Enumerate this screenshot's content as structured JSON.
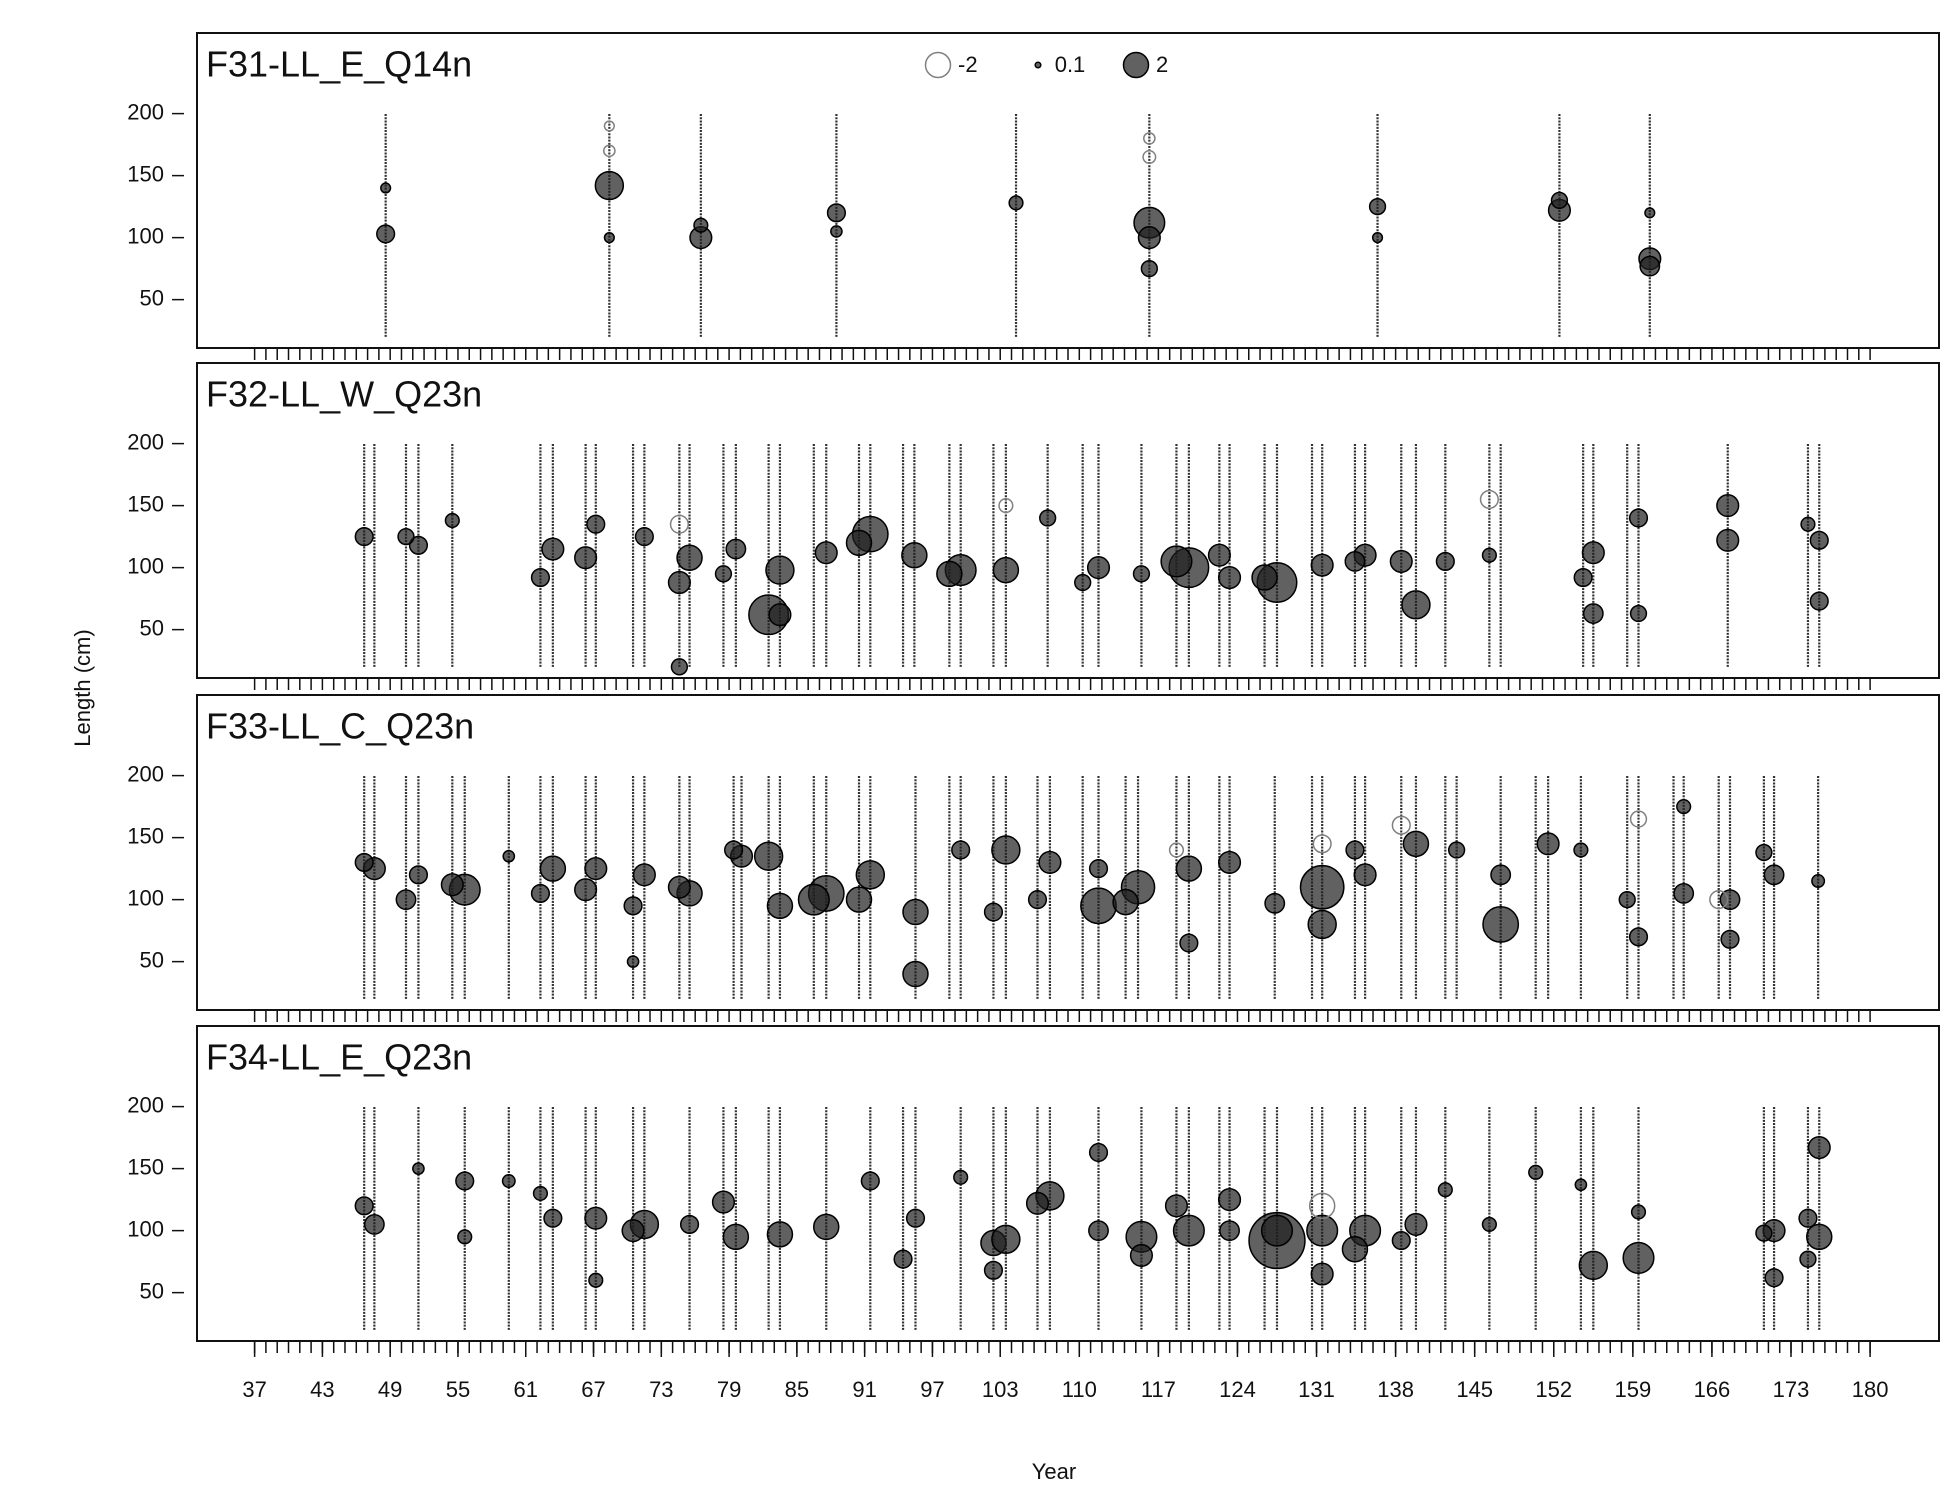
{
  "chart_data": [
    {
      "type": "bubble",
      "title": "F31-LL_E_Q14n",
      "xlim": [
        31.9,
        186.1
      ],
      "ylim": [
        11,
        265
      ],
      "yticks": [
        50,
        100,
        150,
        200
      ],
      "xminor_step": 1,
      "xticks": [
        37,
        43,
        49,
        55,
        61,
        67,
        73,
        79,
        85,
        91,
        97,
        103,
        110,
        117,
        124,
        131,
        138,
        145,
        152,
        159,
        166,
        173,
        180
      ],
      "color": "#1e1e1e",
      "negative_color": "#808080",
      "legend_sizes": [
        -2,
        0.1,
        2
      ],
      "length_range": [
        20,
        200
      ],
      "columns": [
        48.6,
        68.4,
        76.5,
        88.5,
        104.4,
        116.2,
        136.4,
        152.5,
        160.5
      ],
      "x": [
        48.6,
        48.6,
        68.4,
        68.4,
        76.5,
        76.5,
        88.5,
        88.5,
        104.4,
        116.2,
        116.2,
        116.2,
        116.2,
        116.2,
        136.4,
        136.4,
        152.5,
        152.5,
        160.5,
        160.5,
        160.5,
        68.4,
        68.4
      ],
      "y": [
        103,
        140,
        142,
        100,
        100,
        110,
        120,
        105,
        128,
        112,
        100,
        75,
        165,
        180,
        125,
        100,
        122,
        130,
        83,
        77,
        120,
        170,
        190
      ],
      "size": [
        1,
        0.3,
        2.5,
        0.3,
        1.5,
        0.6,
        1,
        0.4,
        0.6,
        3,
        1.5,
        0.8,
        -0.5,
        -0.4,
        0.8,
        0.3,
        1.5,
        0.8,
        1.5,
        1.2,
        0.3,
        -0.4,
        -0.3
      ]
    },
    {
      "type": "bubble",
      "title": "F32-LL_W_Q23n",
      "ylabel": "Length (cm)",
      "xlim": [
        31.9,
        186.1
      ],
      "ylim": [
        11,
        265
      ],
      "yticks": [
        50,
        100,
        150,
        200
      ],
      "xminor_step": 1,
      "xticks": [
        37,
        43,
        49,
        55,
        61,
        67,
        73,
        79,
        85,
        91,
        97,
        103,
        110,
        117,
        124,
        131,
        138,
        145,
        152,
        159,
        166,
        173,
        180
      ],
      "color": "#1e1e1e",
      "negative_color": "#808080",
      "length_range": [
        20,
        200
      ],
      "columns": [
        46.7,
        47.6,
        50.4,
        51.5,
        54.5,
        62.3,
        63.4,
        66.3,
        67.2,
        70.5,
        71.5,
        74.6,
        75.5,
        78.5,
        79.6,
        82.5,
        83.5,
        86.5,
        87.6,
        90.5,
        91.5,
        94.4,
        95.4,
        98.5,
        99.5,
        102.4,
        103.5,
        107.2,
        110.3,
        111.7,
        115.5,
        118.6,
        119.7,
        122.4,
        123.3,
        126.4,
        127.5,
        130.6,
        131.5,
        134.4,
        135.3,
        138.5,
        139.8,
        142.4,
        146.3,
        147.3,
        154.6,
        155.5,
        158.5,
        159.5,
        167.4,
        174.5,
        175.5
      ],
      "x": [
        46.7,
        51.5,
        50.4,
        54.5,
        62.3,
        63.4,
        66.3,
        67.2,
        71.5,
        74.6,
        75.5,
        74.6,
        74.6,
        79.6,
        78.5,
        82.5,
        83.5,
        83.5,
        87.6,
        91.5,
        90.5,
        95.4,
        99.5,
        98.5,
        103.5,
        103.5,
        107.2,
        111.7,
        110.3,
        115.5,
        119.7,
        118.6,
        122.4,
        123.3,
        127.5,
        126.4,
        131.5,
        135.3,
        134.4,
        139.8,
        138.5,
        142.4,
        146.3,
        146.3,
        154.6,
        155.5,
        155.5,
        159.5,
        159.5,
        167.4,
        167.4,
        175.5,
        175.5,
        174.5
      ],
      "y": [
        125,
        118,
        125,
        138,
        92,
        115,
        108,
        135,
        125,
        88,
        108,
        20,
        135,
        115,
        95,
        62,
        98,
        62,
        112,
        127,
        120,
        110,
        98,
        95,
        98,
        150,
        140,
        100,
        88,
        95,
        100,
        105,
        110,
        92,
        88,
        92,
        102,
        110,
        105,
        70,
        105,
        105,
        155,
        110,
        92,
        112,
        63,
        140,
        63,
        150,
        122,
        122,
        73,
        135
      ],
      "size": [
        1,
        1,
        0.8,
        0.6,
        1,
        1.5,
        1.5,
        1,
        1,
        1.5,
        2,
        0.8,
        -1,
        1.2,
        0.8,
        5,
        2.5,
        1.5,
        1.5,
        4,
        2,
        2,
        3,
        2,
        2,
        -0.6,
        0.8,
        1.5,
        0.8,
        0.8,
        5,
        3,
        1.5,
        1.5,
        5,
        2,
        1.5,
        1.5,
        1.2,
        2.5,
        1.5,
        1,
        -1,
        0.6,
        1,
        1.5,
        1.2,
        1,
        0.8,
        1.5,
        1.5,
        1,
        1,
        0.6
      ]
    },
    {
      "type": "bubble",
      "title": "F33-LL_C_Q23n",
      "xlim": [
        31.9,
        186.1
      ],
      "ylim": [
        11,
        265
      ],
      "yticks": [
        50,
        100,
        150,
        200
      ],
      "xminor_step": 1,
      "xticks": [
        37,
        43,
        49,
        55,
        61,
        67,
        73,
        79,
        85,
        91,
        97,
        103,
        110,
        117,
        124,
        131,
        138,
        145,
        152,
        159,
        166,
        173,
        180
      ],
      "color": "#1e1e1e",
      "negative_color": "#808080",
      "length_range": [
        20,
        200
      ],
      "columns": [
        46.7,
        47.6,
        50.4,
        51.5,
        54.5,
        55.6,
        59.5,
        62.3,
        63.4,
        66.3,
        67.2,
        70.5,
        71.5,
        74.6,
        75.5,
        79.4,
        80.1,
        82.5,
        83.5,
        86.5,
        87.6,
        90.5,
        91.5,
        95.5,
        98.5,
        99.5,
        102.4,
        103.5,
        106.3,
        107.4,
        110.3,
        111.7,
        114.1,
        115.2,
        118.6,
        119.7,
        122.4,
        123.3,
        127.3,
        130.6,
        131.5,
        134.4,
        135.3,
        138.5,
        139.8,
        142.4,
        143.4,
        147.3,
        150.4,
        151.5,
        154.4,
        158.5,
        159.5,
        162.6,
        163.5,
        166.6,
        167.6,
        170.6,
        171.5,
        175.4
      ],
      "x": [
        47.6,
        46.7,
        50.4,
        51.5,
        55.6,
        54.5,
        59.5,
        63.4,
        62.3,
        66.3,
        67.2,
        70.5,
        71.5,
        70.5,
        75.5,
        74.6,
        80.1,
        79.4,
        83.5,
        82.5,
        87.6,
        86.5,
        91.5,
        90.5,
        95.5,
        95.5,
        99.5,
        103.5,
        102.4,
        107.4,
        106.3,
        111.7,
        111.7,
        115.2,
        114.1,
        119.7,
        119.7,
        118.6,
        123.3,
        127.3,
        131.5,
        131.5,
        131.5,
        135.3,
        134.4,
        139.8,
        138.5,
        143.4,
        147.3,
        147.3,
        151.5,
        154.4,
        159.5,
        158.5,
        159.5,
        163.5,
        163.5,
        167.6,
        167.6,
        166.6,
        171.5,
        170.6,
        175.4
      ],
      "y": [
        125,
        130,
        100,
        120,
        108,
        112,
        135,
        125,
        105,
        108,
        125,
        95,
        120,
        50,
        105,
        110,
        135,
        140,
        95,
        135,
        105,
        100,
        120,
        100,
        90,
        40,
        140,
        140,
        90,
        130,
        100,
        95,
        125,
        110,
        98,
        125,
        65,
        140,
        130,
        97,
        110,
        80,
        145,
        120,
        140,
        145,
        160,
        140,
        80,
        120,
        145,
        140,
        70,
        100,
        165,
        175,
        105,
        100,
        68,
        100,
        120,
        138,
        115
      ],
      "size": [
        1.5,
        1,
        1.2,
        1,
        3,
        1.5,
        0.4,
        2,
        1,
        1.5,
        1.5,
        1,
        1.5,
        0.4,
        2,
        1.5,
        1.5,
        1,
        2,
        2.5,
        4,
        3,
        2.5,
        2,
        2,
        2,
        1,
        2.5,
        1,
        1.5,
        1,
        4,
        1,
        3.5,
        2,
        2,
        1,
        -0.6,
        1.5,
        1.2,
        6,
        2.5,
        -1,
        1.5,
        1,
        2,
        -1,
        0.8,
        4,
        1.2,
        1.5,
        0.6,
        1,
        0.8,
        -0.8,
        0.6,
        1.2,
        1.2,
        1,
        -1,
        1.2,
        0.8,
        0.5
      ]
    },
    {
      "type": "bubble",
      "title": "F34-LL_E_Q23n",
      "xlabel": "Year",
      "xlim": [
        31.9,
        186.1
      ],
      "ylim": [
        11,
        265
      ],
      "yticks": [
        50,
        100,
        150,
        200
      ],
      "xminor_step": 1,
      "xticks": [
        37,
        43,
        49,
        55,
        61,
        67,
        73,
        79,
        85,
        91,
        97,
        103,
        110,
        117,
        124,
        131,
        138,
        145,
        152,
        159,
        166,
        173,
        180
      ],
      "color": "#1e1e1e",
      "negative_color": "#808080",
      "length_range": [
        20,
        200
      ],
      "columns": [
        46.7,
        47.6,
        51.5,
        55.6,
        59.5,
        62.3,
        63.4,
        66.3,
        67.2,
        70.5,
        71.5,
        75.5,
        78.5,
        79.6,
        82.5,
        83.5,
        87.6,
        91.5,
        94.4,
        95.5,
        99.5,
        102.4,
        103.5,
        106.3,
        107.4,
        111.7,
        115.5,
        118.6,
        119.7,
        122.4,
        123.3,
        126.4,
        127.5,
        130.6,
        131.5,
        134.4,
        135.3,
        138.5,
        139.8,
        142.4,
        146.3,
        150.4,
        154.4,
        155.5,
        159.5,
        170.6,
        171.5,
        174.5,
        175.5
      ],
      "x": [
        46.7,
        47.6,
        51.5,
        55.6,
        55.6,
        59.5,
        63.4,
        62.3,
        67.2,
        67.2,
        71.5,
        70.5,
        75.5,
        78.5,
        79.6,
        83.5,
        87.6,
        91.5,
        94.4,
        95.5,
        99.5,
        102.4,
        103.5,
        102.4,
        107.4,
        106.3,
        111.7,
        111.7,
        115.5,
        115.5,
        119.7,
        118.6,
        123.3,
        123.3,
        127.5,
        127.5,
        131.5,
        131.5,
        131.5,
        135.3,
        134.4,
        139.8,
        138.5,
        142.4,
        146.3,
        150.4,
        154.4,
        155.5,
        159.5,
        159.5,
        171.5,
        170.6,
        171.5,
        175.5,
        175.5,
        174.5,
        174.5
      ],
      "y": [
        120,
        105,
        150,
        140,
        95,
        140,
        110,
        130,
        110,
        60,
        105,
        100,
        105,
        123,
        95,
        97,
        103,
        140,
        77,
        110,
        143,
        90,
        93,
        68,
        128,
        122,
        100,
        163,
        95,
        80,
        100,
        120,
        125,
        100,
        92,
        100,
        100,
        65,
        120,
        100,
        85,
        105,
        92,
        133,
        105,
        147,
        137,
        72,
        78,
        115,
        100,
        98,
        62,
        95,
        167,
        110,
        77
      ],
      "size": [
        1,
        1.2,
        0.4,
        1,
        0.6,
        0.5,
        1,
        0.6,
        1.5,
        0.6,
        2.5,
        1.5,
        1,
        1.5,
        2,
        2,
        2,
        1,
        1,
        1,
        0.6,
        2,
        2.5,
        1,
        2.5,
        1.5,
        1.2,
        1,
        3,
        1.5,
        3,
        1.5,
        1.5,
        1.2,
        10,
        3,
        3,
        1.5,
        -2,
        3,
        2,
        1.5,
        1,
        0.6,
        0.6,
        0.6,
        0.4,
        2.5,
        3,
        0.6,
        1.5,
        0.8,
        1,
        2,
        1.5,
        1,
        0.8
      ]
    }
  ]
}
